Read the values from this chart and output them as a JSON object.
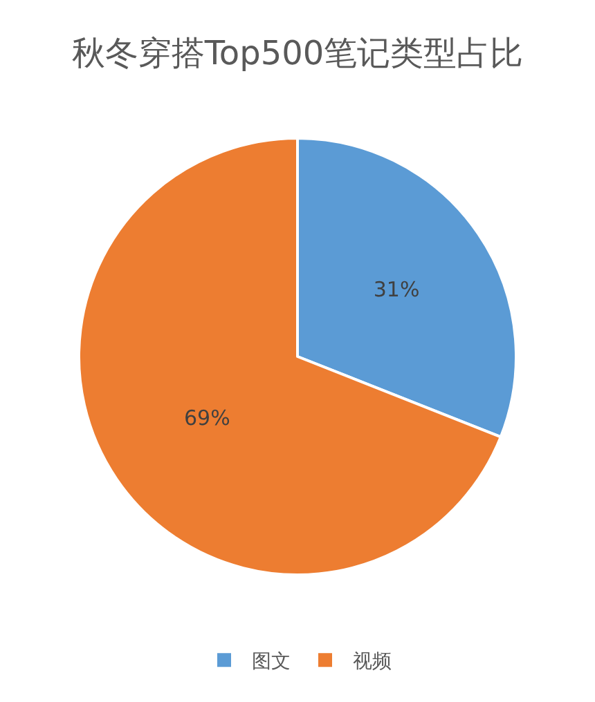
{
  "chart_data": {
    "type": "pie",
    "title": "秋冬穿搭Top500笔记类型占比",
    "categories": [
      "图文",
      "视频"
    ],
    "values": [
      31,
      69
    ],
    "colors": [
      "#5b9bd5",
      "#ed7d31"
    ],
    "value_labels": [
      "31%",
      "69%"
    ],
    "legend": "bottom"
  }
}
